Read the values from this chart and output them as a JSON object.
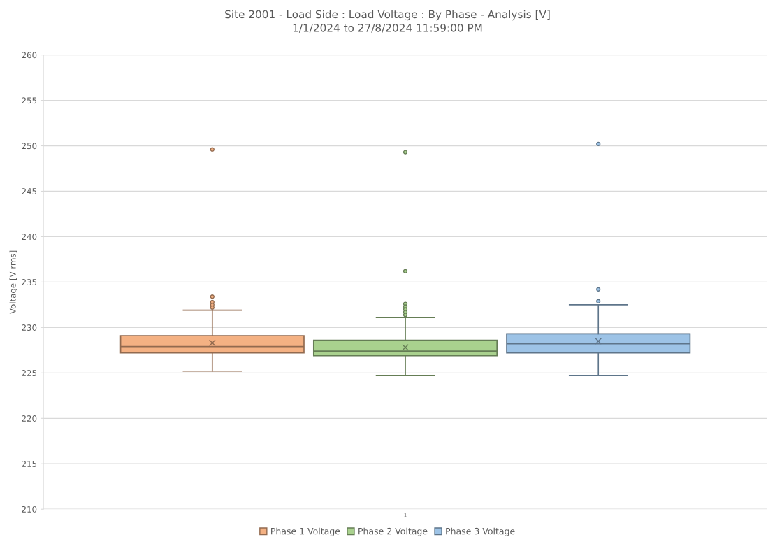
{
  "chart_data": {
    "type": "box",
    "title": "Site 2001 - Load Side : Load Voltage : By Phase - Analysis [V]",
    "subtitle": "1/1/2024 to 27/8/2024 11:59:00 PM",
    "ylabel": "Voltage [V rms]",
    "categories": [
      "1"
    ],
    "series": [
      {
        "name": "Phase 1 Voltage",
        "color": "#f4b183",
        "boxes": [
          {
            "low": 225.2,
            "q1": 227.2,
            "median": 227.9,
            "q3": 229.1,
            "high": 231.9,
            "mean": 228.3,
            "outliers": [
              249.6,
              233.4,
              232.8,
              232.5,
              232.2
            ]
          }
        ]
      },
      {
        "name": "Phase 2 Voltage",
        "color": "#a9d18e",
        "boxes": [
          {
            "low": 224.7,
            "q1": 226.9,
            "median": 227.4,
            "q3": 228.6,
            "high": 231.1,
            "mean": 227.8,
            "outliers": [
              249.3,
              236.2,
              232.6,
              232.3,
              232.0,
              231.7,
              231.4
            ]
          }
        ]
      },
      {
        "name": "Phase 3 Voltage",
        "color": "#9dc3e6",
        "boxes": [
          {
            "low": 224.7,
            "q1": 227.2,
            "median": 228.2,
            "q3": 229.3,
            "high": 232.5,
            "mean": 228.5,
            "outliers": [
              250.2,
              234.2,
              232.9
            ]
          }
        ]
      }
    ],
    "ylim": [
      210,
      260
    ],
    "yticks": [
      210,
      215,
      220,
      225,
      230,
      235,
      240,
      245,
      250,
      255,
      260
    ],
    "grid": "y",
    "legend": "bottom",
    "marker": "circle"
  }
}
